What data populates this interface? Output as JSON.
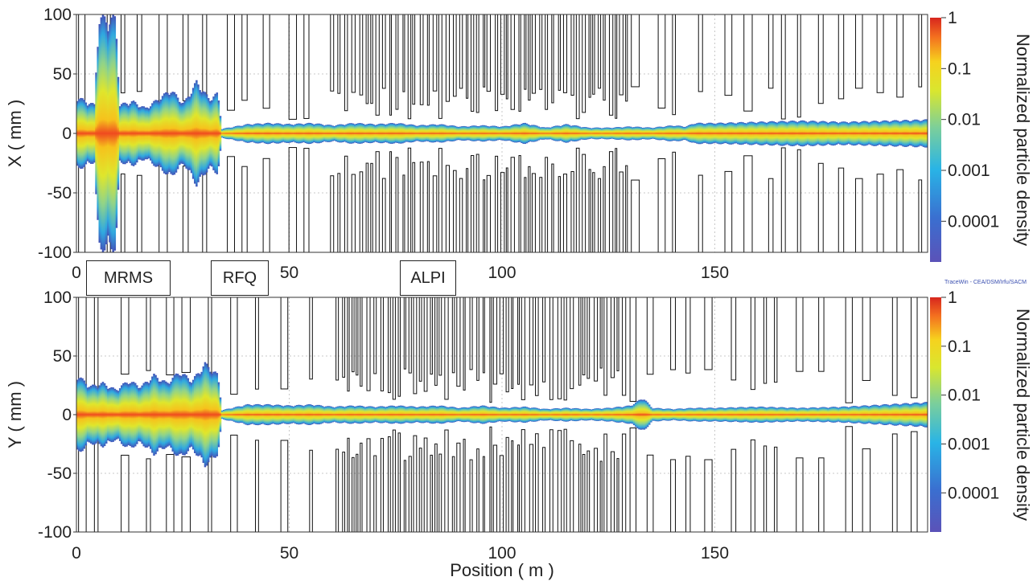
{
  "chart_data": [
    {
      "type": "heatmap",
      "ylabel": "X ( mm )",
      "xlim": [
        0,
        200
      ],
      "ylim": [
        -100,
        100
      ],
      "x_ticks": [
        "0",
        "50",
        "100",
        "150"
      ],
      "y_ticks": [
        "100",
        "50",
        "0",
        "-50",
        "-100"
      ],
      "grid": true,
      "colorbar": {
        "label": "Normalized particle density",
        "scale": "log",
        "ticks": [
          "1",
          "0.1",
          "0.01",
          "0.001",
          "0.0001"
        ]
      },
      "annotations": [
        "MRMS",
        "RFQ",
        "ALPI"
      ],
      "beam_envelope_mm": {
        "position_m": [
          0,
          2,
          4,
          5,
          9,
          10,
          13,
          16,
          19,
          22,
          25,
          28,
          31,
          33,
          34,
          40,
          45,
          50,
          55,
          60,
          65,
          70,
          75,
          80,
          85,
          90,
          95,
          100,
          105,
          110,
          115,
          120,
          125,
          130,
          135,
          140,
          143,
          145,
          150,
          160,
          170,
          180,
          190,
          200
        ],
        "half_width": [
          32,
          28,
          25,
          100,
          100,
          25,
          28,
          22,
          30,
          38,
          26,
          45,
          30,
          35,
          4,
          8,
          9,
          8,
          9,
          7,
          9,
          8,
          9,
          7,
          8,
          6,
          7,
          6,
          9,
          5,
          8,
          5,
          5,
          6,
          5,
          7,
          6,
          9,
          9,
          10,
          11,
          10,
          11,
          12
        ]
      }
    },
    {
      "type": "heatmap",
      "xlabel": "Position ( m )",
      "ylabel": "Y ( mm )",
      "xlim": [
        0,
        200
      ],
      "ylim": [
        -100,
        100
      ],
      "x_ticks": [
        "0",
        "50",
        "100",
        "150"
      ],
      "y_ticks": [
        "100",
        "50",
        "0",
        "-50",
        "-100"
      ],
      "grid": true,
      "colorbar": {
        "label": "Normalized particle density",
        "scale": "log",
        "ticks": [
          "1",
          "0.1",
          "0.01",
          "0.001",
          "0.0001"
        ]
      },
      "beam_envelope_mm": {
        "position_m": [
          0,
          3,
          6,
          9,
          12,
          15,
          18,
          21,
          24,
          27,
          30,
          33,
          34,
          40,
          45,
          50,
          55,
          60,
          65,
          70,
          75,
          80,
          85,
          90,
          95,
          100,
          105,
          110,
          115,
          120,
          125,
          130,
          133,
          135,
          140,
          145,
          150,
          160,
          170,
          180,
          190,
          200
        ],
        "half_width": [
          35,
          25,
          28,
          22,
          30,
          25,
          35,
          28,
          38,
          30,
          45,
          35,
          4,
          9,
          9,
          8,
          9,
          7,
          8,
          7,
          8,
          7,
          8,
          6,
          8,
          6,
          7,
          5,
          6,
          5,
          6,
          8,
          15,
          6,
          5,
          6,
          6,
          7,
          6,
          7,
          9,
          11
        ]
      }
    }
  ],
  "credit": "TraceWin - CEA/DSM/Irfu/SACM"
}
